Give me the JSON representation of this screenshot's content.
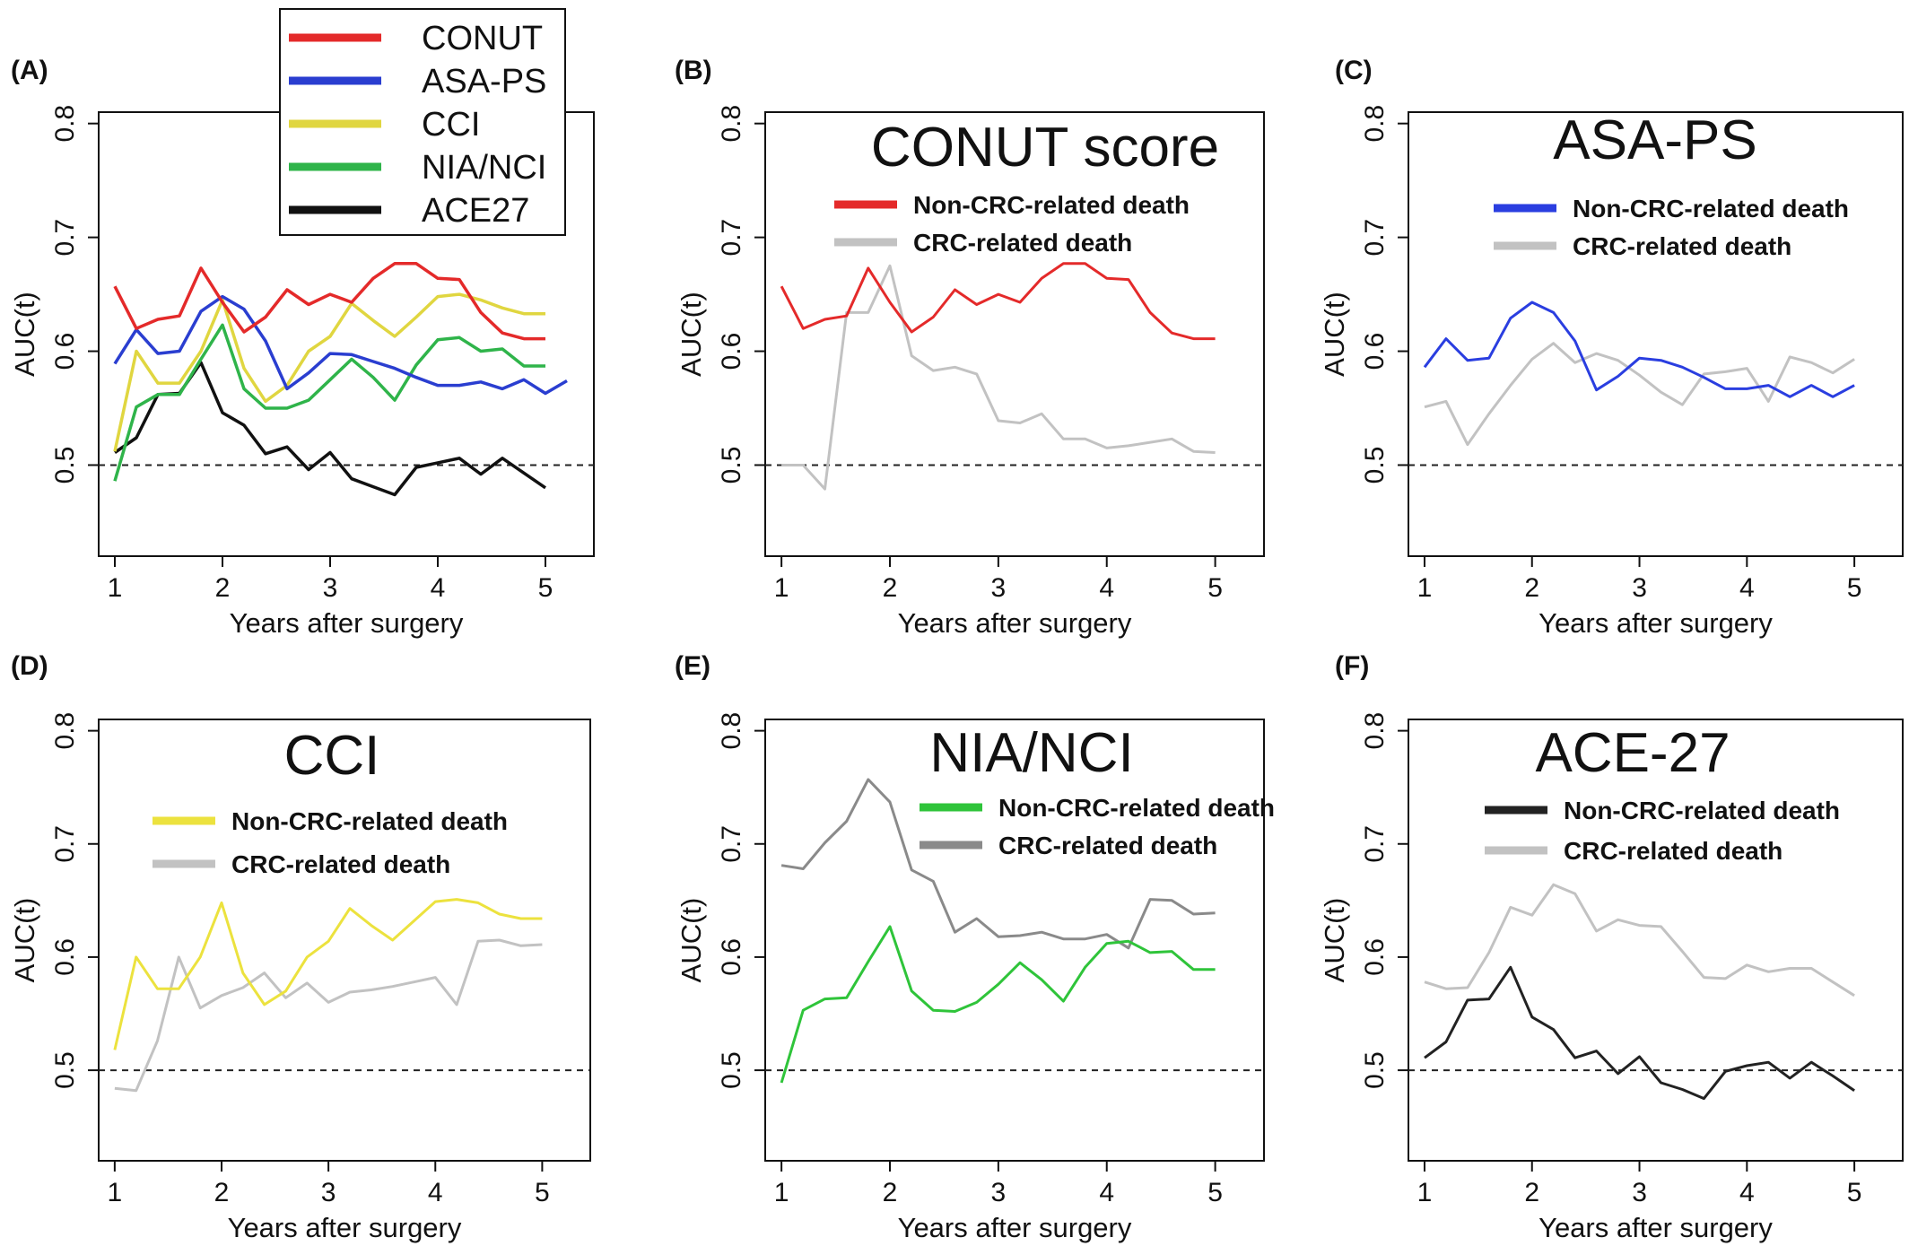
{
  "chart_data": [
    {
      "panel": "(A)",
      "type": "line",
      "title": "",
      "xlabel": "Years after surgery",
      "ylabel": "AUC(t)",
      "xlim": [
        0.85,
        5.45
      ],
      "ylim": [
        0.42,
        0.81
      ],
      "xticks": [
        1,
        2,
        3,
        4,
        5
      ],
      "yticks": [
        0.5,
        0.6,
        0.7,
        0.8
      ],
      "reference_line": 0.5,
      "legend": "top-left-outside",
      "x": [
        1.0,
        1.2,
        1.4,
        1.6,
        1.8,
        2.0,
        2.2,
        2.4,
        2.6,
        2.8,
        3.0,
        3.2,
        3.4,
        3.6,
        3.8,
        4.0,
        4.2,
        4.4,
        4.6,
        4.8,
        5.0,
        5.2,
        5.4
      ],
      "series": [
        {
          "name": "CONUT",
          "color": "#e42a2a",
          "values": [
            0.657,
            0.62,
            0.628,
            0.631,
            0.673,
            0.643,
            0.617,
            0.63,
            0.654,
            0.641,
            0.65,
            0.643,
            0.664,
            0.677,
            0.677,
            0.664,
            0.663,
            0.634,
            0.616,
            0.611,
            0.611,
            null,
            null
          ]
        },
        {
          "name": "ASA-PS",
          "color": "#2a3ed0",
          "values": [
            0.589,
            0.619,
            0.598,
            0.6,
            0.635,
            0.648,
            0.637,
            0.609,
            0.567,
            0.581,
            0.598,
            0.597,
            0.591,
            0.585,
            0.577,
            0.57,
            0.57,
            0.573,
            0.567,
            0.575,
            0.563,
            0.574,
            null
          ]
        },
        {
          "name": "CCI",
          "color": "#e0d640",
          "values": [
            0.512,
            0.6,
            0.572,
            0.572,
            0.6,
            0.645,
            0.585,
            0.556,
            0.57,
            0.6,
            0.613,
            0.642,
            0.627,
            0.613,
            0.63,
            0.648,
            0.65,
            0.645,
            0.638,
            0.633,
            0.633,
            null,
            null
          ]
        },
        {
          "name": "NIA/NCI",
          "color": "#2fb44a",
          "values": [
            0.486,
            0.551,
            0.562,
            0.562,
            0.593,
            0.623,
            0.567,
            0.55,
            0.55,
            0.557,
            0.575,
            0.593,
            0.577,
            0.557,
            0.588,
            0.61,
            0.612,
            0.6,
            0.602,
            0.587,
            0.587,
            null,
            null
          ]
        },
        {
          "name": "ACE27",
          "color": "#111111",
          "values": [
            0.511,
            0.524,
            0.562,
            0.563,
            0.59,
            0.546,
            0.535,
            0.51,
            0.516,
            0.496,
            0.511,
            0.488,
            0.481,
            0.474,
            0.498,
            0.502,
            0.506,
            0.492,
            0.506,
            0.493,
            0.48,
            null,
            null
          ]
        }
      ]
    },
    {
      "panel": "(B)",
      "type": "line",
      "title": "CONUT score",
      "xlabel": "Years after surgery",
      "ylabel": "AUC(t)",
      "xlim": [
        0.85,
        5.45
      ],
      "ylim": [
        0.42,
        0.81
      ],
      "xticks": [
        1,
        2,
        3,
        4,
        5
      ],
      "yticks": [
        0.5,
        0.6,
        0.7,
        0.8
      ],
      "reference_line": 0.5,
      "legend": "top-center",
      "x": [
        1.0,
        1.2,
        1.4,
        1.6,
        1.8,
        2.0,
        2.2,
        2.4,
        2.6,
        2.8,
        3.0,
        3.2,
        3.4,
        3.6,
        3.8,
        4.0,
        4.2,
        4.4,
        4.6,
        4.8,
        5.0,
        5.2,
        5.4
      ],
      "series": [
        {
          "name": "Non-CRC-related death",
          "color": "#e42a2a",
          "values": [
            0.657,
            0.62,
            0.628,
            0.631,
            0.673,
            0.643,
            0.617,
            0.63,
            0.654,
            0.641,
            0.65,
            0.643,
            0.664,
            0.677,
            0.677,
            0.664,
            0.663,
            0.634,
            0.616,
            0.611,
            0.611,
            null,
            null
          ]
        },
        {
          "name": "CRC-related death",
          "color": "#c2c2c2",
          "values": [
            0.5,
            0.5,
            0.479,
            0.634,
            0.634,
            0.675,
            0.596,
            0.583,
            0.586,
            0.58,
            0.539,
            0.537,
            0.545,
            0.523,
            0.523,
            0.515,
            0.517,
            0.52,
            0.523,
            0.512,
            0.511,
            null,
            null
          ]
        }
      ]
    },
    {
      "panel": "(C)",
      "type": "line",
      "title": "ASA-PS",
      "xlabel": "Years after surgery",
      "ylabel": "AUC(t)",
      "xlim": [
        0.85,
        5.45
      ],
      "ylim": [
        0.42,
        0.81
      ],
      "xticks": [
        1,
        2,
        3,
        4,
        5
      ],
      "yticks": [
        0.5,
        0.6,
        0.7,
        0.8
      ],
      "reference_line": 0.5,
      "legend": "top-center",
      "x": [
        1.0,
        1.2,
        1.4,
        1.6,
        1.8,
        2.0,
        2.2,
        2.4,
        2.6,
        2.8,
        3.0,
        3.2,
        3.4,
        3.6,
        3.8,
        4.0,
        4.2,
        4.4,
        4.6,
        4.8,
        5.0,
        5.2,
        5.4
      ],
      "series": [
        {
          "name": "Non-CRC-related death",
          "color": "#2a3ee0",
          "values": [
            0.586,
            0.611,
            0.592,
            0.594,
            0.629,
            0.643,
            0.634,
            0.609,
            0.566,
            0.578,
            0.594,
            0.592,
            0.586,
            0.577,
            0.567,
            0.567,
            0.57,
            0.56,
            0.57,
            0.56,
            0.57,
            null,
            null
          ]
        },
        {
          "name": "CRC-related death",
          "color": "#c2c2c2",
          "values": [
            0.551,
            0.556,
            0.518,
            0.545,
            0.57,
            0.593,
            0.607,
            0.59,
            0.598,
            0.592,
            0.579,
            0.564,
            0.553,
            0.58,
            0.582,
            0.585,
            0.556,
            0.595,
            0.59,
            0.581,
            0.593,
            null,
            null
          ]
        }
      ]
    },
    {
      "panel": "(D)",
      "type": "line",
      "title": "CCI",
      "xlabel": "Years after surgery",
      "ylabel": "AUC(t)",
      "xlim": [
        0.85,
        5.45
      ],
      "ylim": [
        0.42,
        0.81
      ],
      "xticks": [
        1,
        2,
        3,
        4,
        5
      ],
      "yticks": [
        0.5,
        0.6,
        0.7,
        0.8
      ],
      "reference_line": 0.5,
      "legend": "top-center",
      "x": [
        1.0,
        1.2,
        1.4,
        1.6,
        1.8,
        2.0,
        2.2,
        2.4,
        2.6,
        2.8,
        3.0,
        3.2,
        3.4,
        3.6,
        3.8,
        4.0,
        4.2,
        4.4,
        4.6,
        4.8,
        5.0,
        5.2,
        5.4
      ],
      "series": [
        {
          "name": "Non-CRC-related death",
          "color": "#ece23e",
          "values": [
            0.518,
            0.6,
            0.572,
            0.572,
            0.6,
            0.648,
            0.586,
            0.558,
            0.57,
            0.6,
            0.614,
            0.643,
            0.628,
            0.615,
            0.632,
            0.649,
            0.651,
            0.648,
            0.638,
            0.634,
            0.634,
            null,
            null
          ]
        },
        {
          "name": "CRC-related death",
          "color": "#c2c2c2",
          "values": [
            0.484,
            0.482,
            0.526,
            0.6,
            0.555,
            0.566,
            0.573,
            0.586,
            0.564,
            0.577,
            0.56,
            0.569,
            0.571,
            0.574,
            0.578,
            0.582,
            0.558,
            0.614,
            0.615,
            0.61,
            0.611,
            null,
            null
          ]
        }
      ]
    },
    {
      "panel": "(E)",
      "type": "line",
      "title": "NIA/NCI",
      "xlabel": "Years after surgery",
      "ylabel": "AUC(t)",
      "xlim": [
        0.85,
        5.45
      ],
      "ylim": [
        0.42,
        0.81
      ],
      "xticks": [
        1,
        2,
        3,
        4,
        5
      ],
      "yticks": [
        0.5,
        0.6,
        0.7,
        0.8
      ],
      "reference_line": 0.5,
      "legend": "top-right",
      "x": [
        1.0,
        1.2,
        1.4,
        1.6,
        1.8,
        2.0,
        2.2,
        2.4,
        2.6,
        2.8,
        3.0,
        3.2,
        3.4,
        3.6,
        3.8,
        4.0,
        4.2,
        4.4,
        4.6,
        4.8,
        5.0,
        5.2,
        5.4
      ],
      "series": [
        {
          "name": "Non-CRC-related death",
          "color": "#2fc43a",
          "values": [
            0.489,
            0.553,
            0.563,
            0.564,
            0.596,
            0.627,
            0.57,
            0.553,
            0.552,
            0.56,
            0.576,
            0.595,
            0.58,
            0.561,
            0.591,
            0.612,
            0.614,
            0.604,
            0.605,
            0.589,
            0.589,
            null,
            null
          ]
        },
        {
          "name": "CRC-related death",
          "color": "#8a8a8a",
          "values": [
            0.681,
            0.678,
            0.701,
            0.72,
            0.757,
            0.737,
            0.677,
            0.667,
            0.622,
            0.634,
            0.618,
            0.619,
            0.622,
            0.616,
            0.616,
            0.62,
            0.608,
            0.651,
            0.65,
            0.638,
            0.639,
            null,
            null
          ]
        }
      ]
    },
    {
      "panel": "(F)",
      "type": "line",
      "title": "ACE-27",
      "xlabel": "Years after surgery",
      "ylabel": "AUC(t)",
      "xlim": [
        0.85,
        5.45
      ],
      "ylim": [
        0.42,
        0.81
      ],
      "xticks": [
        1,
        2,
        3,
        4,
        5
      ],
      "yticks": [
        0.5,
        0.6,
        0.7,
        0.8
      ],
      "reference_line": 0.5,
      "legend": "top-center",
      "x": [
        1.0,
        1.2,
        1.4,
        1.6,
        1.8,
        2.0,
        2.2,
        2.4,
        2.6,
        2.8,
        3.0,
        3.2,
        3.4,
        3.6,
        3.8,
        4.0,
        4.2,
        4.4,
        4.6,
        4.8,
        5.0,
        5.2,
        5.4
      ],
      "series": [
        {
          "name": "Non-CRC-related death",
          "color": "#222222",
          "values": [
            0.511,
            0.525,
            0.562,
            0.563,
            0.591,
            0.547,
            0.536,
            0.511,
            0.517,
            0.497,
            0.512,
            0.489,
            0.483,
            0.475,
            0.499,
            0.504,
            0.507,
            0.493,
            0.507,
            0.495,
            0.482,
            null,
            null
          ]
        },
        {
          "name": "CRC-related death",
          "color": "#c2c2c2",
          "values": [
            0.578,
            0.572,
            0.573,
            0.604,
            0.644,
            0.637,
            0.664,
            0.656,
            0.623,
            0.633,
            0.628,
            0.627,
            0.605,
            0.582,
            0.581,
            0.593,
            0.587,
            0.59,
            0.59,
            0.578,
            0.566,
            null,
            null
          ]
        }
      ]
    }
  ]
}
